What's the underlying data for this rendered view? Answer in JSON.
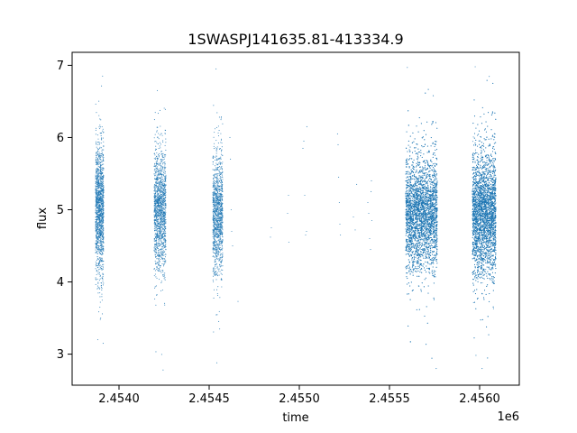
{
  "chart_data": {
    "type": "scatter",
    "title": "1SWASPJ141635.81-413334.9",
    "xlabel": "time",
    "ylabel": "flux",
    "x_offset_label": "1e6",
    "xlim": [
      2453740,
      2456220
    ],
    "ylim": [
      2.57,
      7.18
    ],
    "x_ticks": [
      2453500,
      2454000,
      2454500,
      2455000,
      2455500,
      2456000
    ],
    "x_tick_labels": [
      "2.4540",
      "2.4545",
      "2.4550",
      "2.4555",
      "2.4560"
    ],
    "y_ticks": [
      3,
      4,
      5,
      6,
      7
    ],
    "y_tick_labels": [
      "3",
      "4",
      "5",
      "6",
      "7"
    ],
    "grid": false,
    "marker_color": "#1f77b4",
    "series": [
      {
        "clusters": [
          {
            "x_range": [
              2453870,
              2453915
            ],
            "y_center": 5.0,
            "y_spread": 0.45,
            "y_min": 3.15,
            "y_max": 6.85,
            "density": 1400
          },
          {
            "x_range": [
              2454195,
              2454260
            ],
            "y_center": 5.0,
            "y_spread": 0.42,
            "y_min": 2.78,
            "y_max": 6.65,
            "density": 1400
          },
          {
            "x_range": [
              2454520,
              2454575
            ],
            "y_center": 4.95,
            "y_spread": 0.4,
            "y_min": 2.88,
            "y_max": 6.95,
            "density": 1200
          },
          {
            "x_range": [
              2455590,
              2455765
            ],
            "y_center": 4.95,
            "y_spread": 0.38,
            "y_min": 2.8,
            "y_max": 6.97,
            "density": 5500
          },
          {
            "x_range": [
              2455960,
              2456090
            ],
            "y_center": 4.95,
            "y_spread": 0.42,
            "y_min": 2.8,
            "y_max": 6.98,
            "density": 5000
          }
        ],
        "sparse_points": [
          [
            2454615,
            6.0
          ],
          [
            2454618,
            5.7
          ],
          [
            2454622,
            5.0
          ],
          [
            2454625,
            4.7
          ],
          [
            2454630,
            4.5
          ],
          [
            2454660,
            3.73
          ],
          [
            2454840,
            4.62
          ],
          [
            2454845,
            4.75
          ],
          [
            2454935,
            4.95
          ],
          [
            2454940,
            5.2
          ],
          [
            2454942,
            4.55
          ],
          [
            2455020,
            5.85
          ],
          [
            2455025,
            5.95
          ],
          [
            2455030,
            5.2
          ],
          [
            2455035,
            4.65
          ],
          [
            2455040,
            4.7
          ],
          [
            2455042,
            6.15
          ],
          [
            2455212,
            6.05
          ],
          [
            2455215,
            5.9
          ],
          [
            2455218,
            5.45
          ],
          [
            2455222,
            5.1
          ],
          [
            2455225,
            4.8
          ],
          [
            2455228,
            4.65
          ],
          [
            2455300,
            4.9
          ],
          [
            2455310,
            4.72
          ],
          [
            2455318,
            5.35
          ],
          [
            2455380,
            5.1
          ],
          [
            2455385,
            4.95
          ],
          [
            2455390,
            4.6
          ],
          [
            2455395,
            4.45
          ],
          [
            2455398,
            5.25
          ],
          [
            2455400,
            5.4
          ],
          [
            2455402,
            4.85
          ]
        ]
      }
    ]
  }
}
